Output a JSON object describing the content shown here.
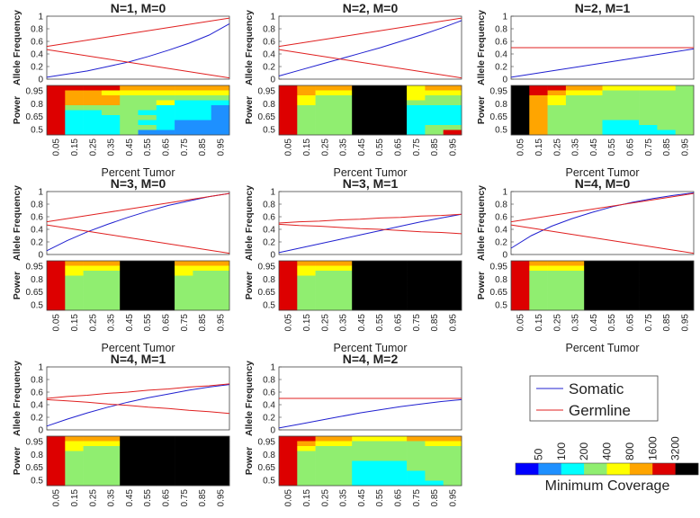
{
  "palette": {
    "colors": [
      "#0000ff",
      "#1e90ff",
      "#00ffff",
      "#90ee70",
      "#ffff00",
      "#ffa500",
      "#dd0000",
      "#000000"
    ],
    "somatic_color": "#2020d0",
    "germline_color": "#e02020"
  },
  "legend": {
    "somatic_label": "Somatic",
    "germline_label": "Germline"
  },
  "colorbar": {
    "label": "Minimum Coverage",
    "ticks": [
      "50",
      "100",
      "200",
      "400",
      "800",
      "1600",
      "3200"
    ]
  },
  "chart_data": [
    {
      "type": "line+heatmap",
      "title": "N=1, M=0",
      "ylabel_top": "Allele Frequency",
      "ylabel_bottom": "Power",
      "xlabel": "Percent Tumor",
      "ylim": [
        0,
        1
      ],
      "yticks": [
        "1",
        "0.8",
        "0.6",
        "0.4",
        "0.2",
        "0"
      ],
      "power_ticks": [
        "0.95",
        "0.8",
        "0.65",
        "0.5"
      ],
      "x_ticks": [
        "0.05",
        "0.15",
        "0.25",
        "0.35",
        "0.45",
        "0.55",
        "0.65",
        "0.75",
        "0.85",
        "0.95"
      ],
      "x": [
        0.05,
        0.15,
        0.25,
        0.35,
        0.45,
        0.55,
        0.65,
        0.75,
        0.85,
        0.95
      ],
      "somatic": [
        0.03,
        0.08,
        0.13,
        0.2,
        0.27,
        0.36,
        0.46,
        0.57,
        0.7,
        0.88
      ],
      "germline": [
        [
          0.52,
          0.57,
          0.62,
          0.67,
          0.72,
          0.77,
          0.82,
          0.87,
          0.92,
          0.97
        ],
        [
          0.47,
          0.42,
          0.37,
          0.32,
          0.27,
          0.22,
          0.17,
          0.12,
          0.07,
          0.02
        ]
      ],
      "heatmap": [
        "6666555555",
        "6554444444",
        "6555333333",
        "6555334222",
        "6333332221",
        "6223322221",
        "6222332221",
        "6222322111",
        "6222332111",
        "6222311111"
      ],
      "heatmap_mask": "0000000077777711111111111"
    },
    {
      "type": "line+heatmap",
      "title": "N=2, M=0",
      "ylabel_top": "Allele Frequency",
      "ylabel_bottom": "Power",
      "xlabel": "Percent Tumor",
      "ylim": [
        0,
        1
      ],
      "yticks": [
        "1",
        "0.8",
        "0.6",
        "0.4",
        "0.2",
        "0"
      ],
      "power_ticks": [
        "0.95",
        "0.8",
        "0.65",
        "0.5"
      ],
      "x_ticks": [
        "0.05",
        "0.15",
        "0.25",
        "0.35",
        "0.45",
        "0.55",
        "0.65",
        "0.75",
        "0.85",
        "0.95"
      ],
      "x": [
        0.05,
        0.15,
        0.25,
        0.35,
        0.45,
        0.55,
        0.65,
        0.75,
        0.85,
        0.95
      ],
      "somatic": [
        0.05,
        0.14,
        0.23,
        0.32,
        0.41,
        0.5,
        0.6,
        0.7,
        0.81,
        0.93
      ],
      "germline": [
        [
          0.52,
          0.57,
          0.62,
          0.67,
          0.72,
          0.77,
          0.82,
          0.87,
          0.92,
          0.97
        ],
        [
          0.47,
          0.42,
          0.37,
          0.32,
          0.27,
          0.22,
          0.17,
          0.12,
          0.07,
          0.02
        ]
      ],
      "heatmap": [
        "6555777455",
        "6544777444",
        "6433777433",
        "6433777333",
        "6333777222",
        "6333777222",
        "6333777222",
        "6333777222",
        "6333777233",
        "6333777236"
      ],
      "heatmap_mask": "0000000000000000000000000"
    },
    {
      "type": "line+heatmap",
      "title": "N=2, M=1",
      "ylabel_top": "Allele Frequency",
      "ylabel_bottom": "Power",
      "xlabel": "Percent Tumor",
      "ylim": [
        0,
        1
      ],
      "yticks": [
        "1",
        "0.8",
        "0.6",
        "0.4",
        "0.2",
        "0"
      ],
      "power_ticks": [
        "0.95",
        "0.8",
        "0.65",
        "0.5"
      ],
      "x_ticks": [
        "0.05",
        "0.15",
        "0.25",
        "0.35",
        "0.45",
        "0.55",
        "0.65",
        "0.75",
        "0.85",
        "0.95"
      ],
      "x": [
        0.05,
        0.15,
        0.25,
        0.35,
        0.45,
        0.55,
        0.65,
        0.75,
        0.85,
        0.95
      ],
      "somatic": [
        0.03,
        0.08,
        0.13,
        0.18,
        0.23,
        0.28,
        0.33,
        0.38,
        0.43,
        0.48
      ],
      "germline": [
        [
          0.5,
          0.5,
          0.5,
          0.5,
          0.5,
          0.5,
          0.5,
          0.5,
          0.5,
          0.5
        ]
      ],
      "heatmap": [
        "7665544443",
        "7654433333",
        "7543333333",
        "7543333333",
        "7533333333",
        "7533333333",
        "7533333333",
        "7533322333",
        "7533322233",
        "7533322223"
      ],
      "heatmap_mask": "0000000000000000000000000"
    },
    {
      "type": "line+heatmap",
      "title": "N=3, M=0",
      "ylabel_top": "Allele Frequency",
      "ylabel_bottom": "Power",
      "xlabel": "Percent Tumor",
      "ylim": [
        0,
        1
      ],
      "yticks": [
        "1",
        "0.8",
        "0.6",
        "0.4",
        "0.2",
        "0"
      ],
      "power_ticks": [
        "0.95",
        "0.8",
        "0.65",
        "0.5"
      ],
      "x_ticks": [
        "0.05",
        "0.15",
        "0.25",
        "0.35",
        "0.45",
        "0.55",
        "0.65",
        "0.75",
        "0.85",
        "0.95"
      ],
      "x": [
        0.05,
        0.15,
        0.25,
        0.35,
        0.45,
        0.55,
        0.65,
        0.75,
        0.85,
        0.95
      ],
      "somatic": [
        0.06,
        0.22,
        0.36,
        0.48,
        0.59,
        0.69,
        0.78,
        0.85,
        0.92,
        0.97
      ],
      "germline": [
        [
          0.52,
          0.57,
          0.62,
          0.67,
          0.72,
          0.77,
          0.82,
          0.87,
          0.92,
          0.97
        ],
        [
          0.47,
          0.42,
          0.37,
          0.32,
          0.27,
          0.22,
          0.17,
          0.12,
          0.07,
          0.02
        ]
      ],
      "heatmap": [
        "6555777555",
        "6444777444",
        "6433777433",
        "6333777333",
        "6333777333",
        "6333777333",
        "6333777333",
        "6333777333",
        "6333777333",
        "6333777333"
      ],
      "heatmap_mask": "0000000000000000000000000"
    },
    {
      "type": "line+heatmap",
      "title": "N=3, M=1",
      "ylabel_top": "Allele Frequency",
      "ylabel_bottom": "Power",
      "xlabel": "Percent Tumor",
      "ylim": [
        0,
        1
      ],
      "yticks": [
        "1",
        "0.8",
        "0.6",
        "0.4",
        "0.2",
        "0"
      ],
      "power_ticks": [
        "0.95",
        "0.8",
        "0.65",
        "0.5"
      ],
      "x_ticks": [
        "0.05",
        "0.15",
        "0.25",
        "0.35",
        "0.45",
        "0.55",
        "0.65",
        "0.75",
        "0.85",
        "0.95"
      ],
      "x": [
        0.05,
        0.15,
        0.25,
        0.35,
        0.45,
        0.55,
        0.65,
        0.75,
        0.85,
        0.95
      ],
      "somatic": [
        0.03,
        0.1,
        0.17,
        0.24,
        0.31,
        0.38,
        0.45,
        0.52,
        0.58,
        0.64
      ],
      "germline": [
        [
          0.5,
          0.52,
          0.53,
          0.55,
          0.56,
          0.58,
          0.59,
          0.61,
          0.62,
          0.64
        ],
        [
          0.48,
          0.46,
          0.45,
          0.43,
          0.41,
          0.4,
          0.38,
          0.36,
          0.35,
          0.33
        ]
      ],
      "heatmap": [
        "6555777777",
        "6444777777",
        "6433777777",
        "6333777777",
        "6333777777",
        "6333777777",
        "6333777777",
        "6333777777",
        "6333777777",
        "6333777777"
      ],
      "heatmap_mask": "0000000000000000000000000"
    },
    {
      "type": "line+heatmap",
      "title": "N=4, M=0",
      "ylabel_top": "Allele Frequency",
      "ylabel_bottom": "Power",
      "xlabel": "Percent Tumor",
      "ylim": [
        0,
        1
      ],
      "yticks": [
        "1",
        "0.8",
        "0.6",
        "0.4",
        "0.2",
        "0"
      ],
      "power_ticks": [
        "0.95",
        "0.8",
        "0.65",
        "0.5"
      ],
      "x_ticks": [
        "0.05",
        "0.15",
        "0.25",
        "0.35",
        "0.45",
        "0.55",
        "0.65",
        "0.75",
        "0.85",
        "0.95"
      ],
      "x": [
        0.05,
        0.15,
        0.25,
        0.35,
        0.45,
        0.55,
        0.65,
        0.75,
        0.85,
        0.95
      ],
      "somatic": [
        0.1,
        0.3,
        0.45,
        0.57,
        0.67,
        0.76,
        0.83,
        0.89,
        0.94,
        0.98
      ],
      "germline": [
        [
          0.52,
          0.57,
          0.62,
          0.67,
          0.72,
          0.77,
          0.82,
          0.87,
          0.92,
          0.97
        ],
        [
          0.47,
          0.42,
          0.37,
          0.32,
          0.27,
          0.22,
          0.17,
          0.12,
          0.07,
          0.02
        ]
      ],
      "heatmap": [
        "6555777777",
        "6444777777",
        "6333777777",
        "6333777777",
        "6333777777",
        "6333777777",
        "6333777777",
        "6333777777",
        "6333777777",
        "6333777777"
      ],
      "heatmap_mask": "0000000000000000000000000"
    },
    {
      "type": "line+heatmap",
      "title": "N=4, M=1",
      "ylabel_top": "Allele Frequency",
      "ylabel_bottom": "Power",
      "xlabel": "Percent Tumor",
      "ylim": [
        0,
        1
      ],
      "yticks": [
        "1",
        "0.8",
        "0.6",
        "0.4",
        "0.2",
        "0"
      ],
      "power_ticks": [
        "0.95",
        "0.8",
        "0.65",
        "0.5"
      ],
      "x_ticks": [
        "0.05",
        "0.15",
        "0.25",
        "0.35",
        "0.45",
        "0.55",
        "0.65",
        "0.75",
        "0.85",
        "0.95"
      ],
      "x": [
        0.05,
        0.15,
        0.25,
        0.35,
        0.45,
        0.55,
        0.65,
        0.75,
        0.85,
        0.95
      ],
      "somatic": [
        0.06,
        0.17,
        0.27,
        0.36,
        0.44,
        0.51,
        0.57,
        0.63,
        0.68,
        0.72
      ],
      "germline": [
        [
          0.5,
          0.53,
          0.55,
          0.58,
          0.6,
          0.63,
          0.65,
          0.68,
          0.7,
          0.73
        ],
        [
          0.48,
          0.46,
          0.44,
          0.41,
          0.39,
          0.36,
          0.34,
          0.31,
          0.29,
          0.26
        ]
      ],
      "heatmap": [
        "6555777777",
        "6444777777",
        "6433777777",
        "6333777777",
        "6333777777",
        "6333777777",
        "6333777777",
        "6333777777",
        "6333777777",
        "6333777777"
      ],
      "heatmap_mask": "0000000000000000000000000"
    },
    {
      "type": "line+heatmap",
      "title": "N=4, M=2",
      "ylabel_top": "Allele Frequency",
      "ylabel_bottom": "Power",
      "xlabel": "Percent Tumor",
      "ylim": [
        0,
        1
      ],
      "yticks": [
        "1",
        "0.8",
        "0.6",
        "0.4",
        "0.2",
        "0"
      ],
      "power_ticks": [
        "0.95",
        "0.8",
        "0.65",
        "0.5"
      ],
      "x_ticks": [
        "0.05",
        "0.15",
        "0.25",
        "0.35",
        "0.45",
        "0.55",
        "0.65",
        "0.75",
        "0.85",
        "0.95"
      ],
      "x": [
        0.05,
        0.15,
        0.25,
        0.35,
        0.45,
        0.55,
        0.65,
        0.75,
        0.85,
        0.95
      ],
      "somatic": [
        0.03,
        0.09,
        0.15,
        0.21,
        0.27,
        0.32,
        0.37,
        0.41,
        0.45,
        0.48
      ],
      "germline": [
        [
          0.5,
          0.5,
          0.5,
          0.5,
          0.5,
          0.5,
          0.5,
          0.5,
          0.5,
          0.5
        ]
      ],
      "heatmap": [
        "6655444555",
        "6544333344",
        "6433333333",
        "6333333333",
        "6333333333",
        "6333222333",
        "6333222333",
        "6333222233",
        "6333222233",
        "6333222223"
      ],
      "heatmap_mask": "0000000000000000000000000"
    }
  ]
}
